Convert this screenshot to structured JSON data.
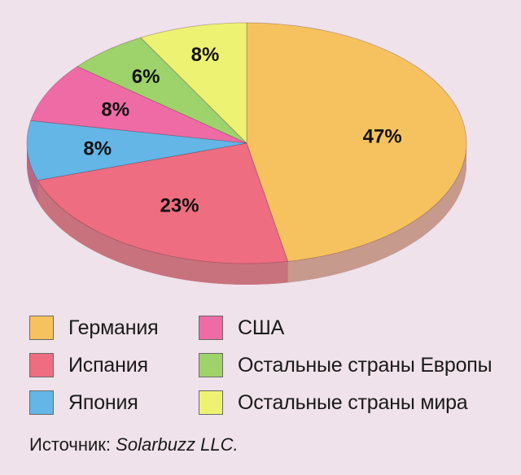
{
  "chart_data": {
    "type": "pie",
    "style": "3d",
    "slices": [
      {
        "name": "Германия",
        "value": 47,
        "label": "47%",
        "color": "#f6c260",
        "side_color": "#c79a8e"
      },
      {
        "name": "Испания",
        "value": 23,
        "label": "23%",
        "color": "#ee6d80",
        "side_color": "#c8727e"
      },
      {
        "name": "Япония",
        "value": 8,
        "label": "8%",
        "color": "#63b6e6",
        "side_color": "#b46a87"
      },
      {
        "name": "США",
        "value": 8,
        "label": "8%",
        "color": "#ef6ba6",
        "side_color": "#b36a8a"
      },
      {
        "name": "Остальные страны Европы",
        "value": 6,
        "label": "6%",
        "color": "#9ed26a",
        "side_color": "#b36a8a"
      },
      {
        "name": "Остальные страны мира",
        "value": 8,
        "label": "8%",
        "color": "#eef273",
        "side_color": "#b36a8a"
      }
    ],
    "legend_order": [
      0,
      1,
      2,
      3,
      4,
      5
    ],
    "legend_placement": "bottom",
    "unit": "%"
  },
  "source": {
    "prefix": "Источник: ",
    "name": "Solarbuzz LLC."
  },
  "colors": {
    "background": "#efe2ea",
    "pie_side": "#b36a8a"
  }
}
